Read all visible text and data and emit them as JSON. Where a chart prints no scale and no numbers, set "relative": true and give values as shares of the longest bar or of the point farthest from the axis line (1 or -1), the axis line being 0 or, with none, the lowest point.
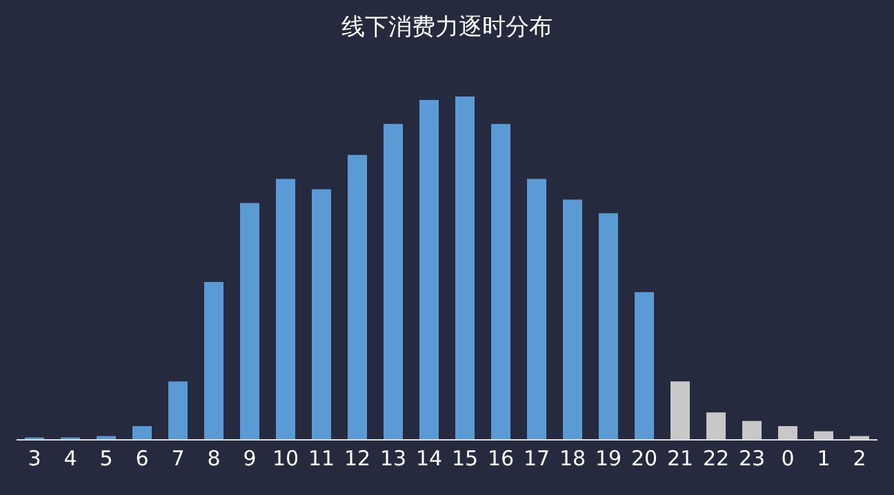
{
  "chart_data": {
    "type": "bar",
    "title": "线下消费力逐时分布",
    "relative": true,
    "categories": [
      "3",
      "4",
      "5",
      "6",
      "7",
      "8",
      "9",
      "10",
      "11",
      "12",
      "13",
      "14",
      "15",
      "16",
      "17",
      "18",
      "19",
      "20",
      "21",
      "22",
      "23",
      "0",
      "1",
      "2"
    ],
    "values": [
      0.007,
      0.007,
      0.011,
      0.04,
      0.17,
      0.46,
      0.69,
      0.76,
      0.73,
      0.83,
      0.92,
      0.99,
      1,
      0.92,
      0.76,
      0.7,
      0.66,
      0.43,
      0.17,
      0.08,
      0.055,
      0.04,
      0.025,
      0.011
    ],
    "colors": [
      "#5b9bd5",
      "#5b9bd5",
      "#5b9bd5",
      "#5b9bd5",
      "#5b9bd5",
      "#5b9bd5",
      "#5b9bd5",
      "#5b9bd5",
      "#5b9bd5",
      "#5b9bd5",
      "#5b9bd5",
      "#5b9bd5",
      "#5b9bd5",
      "#5b9bd5",
      "#5b9bd5",
      "#5b9bd5",
      "#5b9bd5",
      "#5b9bd5",
      "#c8c8c8",
      "#c8c8c8",
      "#c8c8c8",
      "#c8c8c8",
      "#c8c8c8",
      "#c8c8c8"
    ],
    "grid": false,
    "legend": false
  }
}
